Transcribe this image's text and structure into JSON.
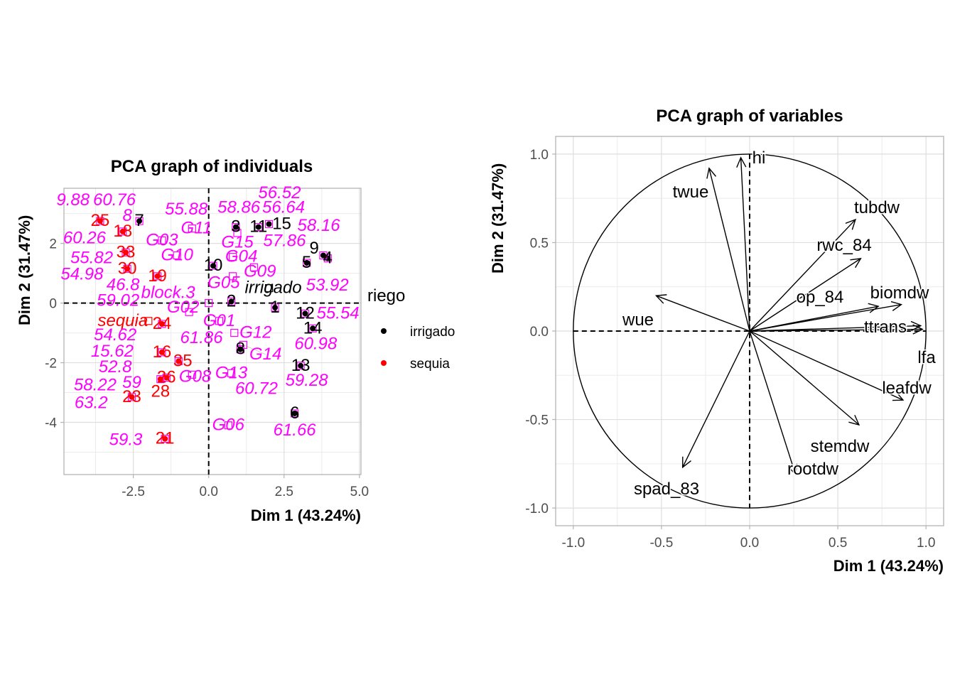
{
  "chart_data": [
    {
      "type": "scatter",
      "title": "PCA graph of individuals",
      "xlabel": "Dim 1 (43.24%)",
      "ylabel": "Dim 2 (31.47%)",
      "xlim": [
        -4.8,
        5.05
      ],
      "ylim": [
        -5.75,
        3.85
      ],
      "xticks": [
        -2.5,
        0.0,
        2.5,
        5.0
      ],
      "xtick_labels": [
        "-2.5",
        "0.0",
        "2.5",
        "5.0"
      ],
      "yticks": [
        -4,
        -2,
        0,
        2
      ],
      "ytick_labels": [
        "-4",
        "-2",
        "0",
        "2"
      ],
      "grid": true,
      "legend": {
        "title": "riego",
        "placement": "right",
        "entries": [
          {
            "label": "irrigado",
            "color": "#000000"
          },
          {
            "label": "sequia",
            "color": "#ff0000"
          }
        ]
      },
      "colors": {
        "irrigado": "#000000",
        "sequia": "#ff0000",
        "supplementary": "#ff00ff"
      },
      "individuals": [
        {
          "label": "1",
          "group": "irrigado",
          "x": 2.2,
          "y": -0.15
        },
        {
          "label": "2",
          "group": "irrigado",
          "x": 0.75,
          "y": 0.05
        },
        {
          "label": "3",
          "group": "irrigado",
          "x": 0.9,
          "y": 2.55
        },
        {
          "label": "4",
          "group": "irrigado",
          "x": 3.95,
          "y": 1.5
        },
        {
          "label": "5",
          "group": "irrigado",
          "x": 3.25,
          "y": 1.35
        },
        {
          "label": "6",
          "group": "irrigado",
          "x": 2.85,
          "y": -3.7
        },
        {
          "label": "7",
          "group": "irrigado",
          "x": -2.3,
          "y": 2.75
        },
        {
          "label": "8",
          "group": "irrigado",
          "x": 1.05,
          "y": -1.55
        },
        {
          "label": "9",
          "group": "irrigado",
          "x": 3.8,
          "y": 1.6
        },
        {
          "label": "10",
          "group": "irrigado",
          "x": 0.15,
          "y": 1.25
        },
        {
          "label": "11",
          "group": "irrigado",
          "x": 1.65,
          "y": 2.55
        },
        {
          "label": "12",
          "group": "irrigado",
          "x": 3.2,
          "y": -0.35
        },
        {
          "label": "13",
          "group": "irrigado",
          "x": 3.05,
          "y": -2.1
        },
        {
          "label": "14",
          "group": "irrigado",
          "x": 3.45,
          "y": -0.85
        },
        {
          "label": "15",
          "group": "irrigado",
          "x": 2.0,
          "y": 2.65
        },
        {
          "label": "16",
          "group": "sequia",
          "x": -1.55,
          "y": -1.65
        },
        {
          "label": "18",
          "group": "sequia",
          "x": -2.85,
          "y": 2.4
        },
        {
          "label": "19",
          "group": "sequia",
          "x": -1.7,
          "y": 0.9
        },
        {
          "label": "21",
          "group": "sequia",
          "x": -1.45,
          "y": -4.55
        },
        {
          "label": "23",
          "group": "sequia",
          "x": -2.55,
          "y": -3.15
        },
        {
          "label": "24",
          "group": "sequia",
          "x": -1.55,
          "y": -0.7
        },
        {
          "label": "25",
          "group": "sequia",
          "x": -3.6,
          "y": 2.75
        },
        {
          "label": "26",
          "group": "sequia",
          "x": -1.4,
          "y": -2.5
        },
        {
          "label": "28",
          "group": "sequia",
          "x": -1.6,
          "y": -2.55
        },
        {
          "label": "30",
          "group": "sequia",
          "x": -2.7,
          "y": 1.15
        },
        {
          "label": "33",
          "group": "sequia",
          "x": -2.75,
          "y": 1.7
        },
        {
          "label": "35",
          "group": "sequia",
          "x": -1.0,
          "y": -1.95
        }
      ],
      "supplementary_points": [
        {
          "label": "G01",
          "x": 0.35,
          "y": -0.6
        },
        {
          "label": "G03",
          "x": -1.55,
          "y": 2.1
        },
        {
          "label": "G04",
          "x": 0.8,
          "y": 1.55
        },
        {
          "label": "G06",
          "x": 0.65,
          "y": -4.1
        },
        {
          "label": "G08",
          "x": -0.55,
          "y": -2.4
        },
        {
          "label": "G09",
          "x": 1.5,
          "y": 1.2
        },
        {
          "label": "G10",
          "x": -1.05,
          "y": 1.6
        },
        {
          "label": "G11",
          "x": -0.55,
          "y": 2.5
        },
        {
          "label": "G12",
          "x": 0.85,
          "y": -1.0
        },
        {
          "label": "G13",
          "x": 0.75,
          "y": -2.35
        },
        {
          "label": "G14",
          "x": 1.15,
          "y": -1.4
        },
        {
          "label": "G15",
          "x": 0.95,
          "y": 2.35
        },
        {
          "label": "G05",
          "x": 0.8,
          "y": 0.9
        },
        {
          "label": "G02",
          "x": -0.65,
          "y": -0.3
        },
        {
          "label": "block.3",
          "x": 0.0,
          "y": 0.0
        },
        {
          "label": "irrigado",
          "x": 2.0,
          "y": 0.5
        },
        {
          "label": "sequia",
          "x": -2.0,
          "y": -0.6
        }
      ],
      "supplementary_quanti_labels": [
        "9.88",
        "60.76",
        "8",
        "60.26",
        "55.82",
        "54.98",
        "46.8",
        "58.86",
        "59.02",
        "54.62",
        "56.64",
        "56.52",
        "55.88",
        "57.86",
        "58.16",
        "61.86",
        "53.92",
        "55.54",
        "60.98",
        "60.72",
        "59.28",
        "61.66",
        "15.62",
        "52.8",
        "58.22",
        "59",
        "63.2",
        "59.3"
      ]
    },
    {
      "type": "line",
      "subtype": "variables-correlation-circle",
      "title": "PCA graph of variables",
      "xlabel": "Dim 1 (43.24%)",
      "ylabel": "Dim 2 (31.47%)",
      "xlim": [
        -1.1,
        1.1
      ],
      "ylim": [
        -1.1,
        1.1
      ],
      "xticks": [
        -1.0,
        -0.5,
        0.0,
        0.5,
        1.0
      ],
      "xtick_labels": [
        "-1.0",
        "-0.5",
        "0.0",
        "0.5",
        "1.0"
      ],
      "yticks": [
        -1.0,
        -0.5,
        0.0,
        0.5,
        1.0
      ],
      "ytick_labels": [
        "-1.0",
        "-0.5",
        "0.0",
        "0.5",
        "1.0"
      ],
      "grid": true,
      "variables": [
        {
          "name": "hi",
          "x": -0.05,
          "y": 0.98
        },
        {
          "name": "twue",
          "x": -0.23,
          "y": 0.92
        },
        {
          "name": "tubdw",
          "x": 0.6,
          "y": 0.63
        },
        {
          "name": "rwc_84",
          "x": 0.63,
          "y": 0.41
        },
        {
          "name": "op_84",
          "x": 0.86,
          "y": 0.15
        },
        {
          "name": "biomdw",
          "x": 0.73,
          "y": 0.14
        },
        {
          "name": "ttrans",
          "x": 0.97,
          "y": 0.03
        },
        {
          "name": "lfa",
          "x": 0.98,
          "y": 0.01
        },
        {
          "name": "leafdw",
          "x": 0.87,
          "y": -0.39
        },
        {
          "name": "stemdw",
          "x": 0.62,
          "y": -0.53
        },
        {
          "name": "rootdw",
          "x": 0.26,
          "y": -0.81
        },
        {
          "name": "spad_83",
          "x": -0.38,
          "y": -0.77
        },
        {
          "name": "wue",
          "x": -0.53,
          "y": 0.2
        }
      ]
    }
  ]
}
